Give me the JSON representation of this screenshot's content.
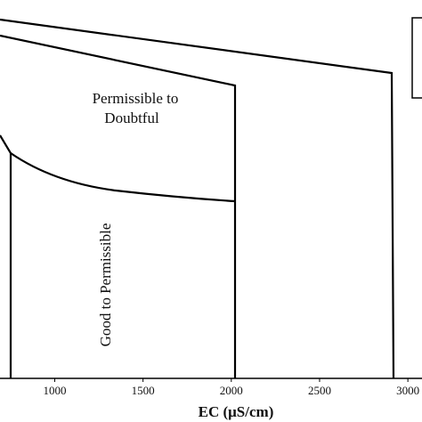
{
  "chart_data": {
    "type": "line",
    "xlabel": "EC (μS/cm)",
    "xlim": [
      690,
      3080
    ],
    "xticks": [
      1000,
      1500,
      2000,
      2500,
      3000
    ],
    "annotations": [
      "Permissible to",
      "Doubtful",
      "Good to Permissible"
    ]
  }
}
